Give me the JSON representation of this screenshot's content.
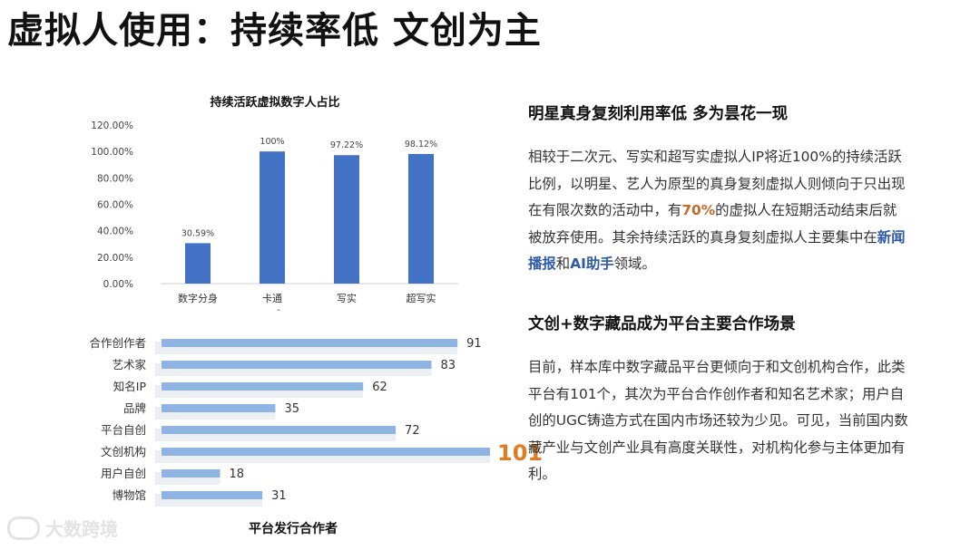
{
  "slide": {
    "title": "虚拟人使用：持续率低 文创为主"
  },
  "chart1": {
    "title": "持续活跃虚拟数字人占比",
    "dash_label": "-"
  },
  "chart2": {
    "title": "平台发行合作者"
  },
  "chart_data": [
    {
      "type": "bar",
      "title": "持续活跃虚拟数字人占比",
      "categories": [
        "数字分身",
        "卡通",
        "写实",
        "超写实"
      ],
      "values": [
        30.59,
        100,
        97.22,
        98.12
      ],
      "value_labels": [
        "30.59%",
        "100%",
        "97.22%",
        "98.12%"
      ],
      "ylim": [
        0,
        120
      ],
      "yticks": [
        "0.00%",
        "20.00%",
        "40.00%",
        "60.00%",
        "80.00%",
        "100.00%",
        "120.00%"
      ],
      "grid": false,
      "color": "#4472c4"
    },
    {
      "type": "bar",
      "orientation": "horizontal",
      "title": "平台发行合作者",
      "categories": [
        "合作创作者",
        "艺术家",
        "知名IP",
        "品牌",
        "平台自创",
        "文创机构",
        "用户自创",
        "博物馆"
      ],
      "values": [
        91,
        83,
        62,
        35,
        72,
        101,
        18,
        31
      ],
      "xlim": [
        0,
        101
      ],
      "highlight_index": 5,
      "color": "#8db4e2",
      "highlight_label_color": "#e07b22"
    }
  ],
  "section1": {
    "heading": "明星真身复刻利用率低 多为昙花一现",
    "p1": "相较于二次元、写实和超写实虚拟人IP将近100%的持续活跃比例，以明星、艺人为原型的真身复刻虚拟人则倾向于只出现在有限次数的活动中，有",
    "hl1": "70%",
    "p2": "的虚拟人在短期活动结束后就被放弃使用。其余持续活跃的真身复刻虚拟人主要集中在",
    "hl2": "新闻播报",
    "p3": "和",
    "hl3": "AI助手",
    "p4": "领域。"
  },
  "section2": {
    "heading": "文创+数字藏品成为平台主要合作场景",
    "p1": "目前，样本库中数字藏品平台更倾向于和文创机构合作，此类平台有101个，其次为平台合作创作者和知名艺术家；用户自创的UGC铸造方式在国内市场还较为少见。可见，当前国内数藏产业与文创产业具有高度关联性，对机构化参与主体更加有利。"
  },
  "watermark": {
    "text": "大数跨境"
  }
}
